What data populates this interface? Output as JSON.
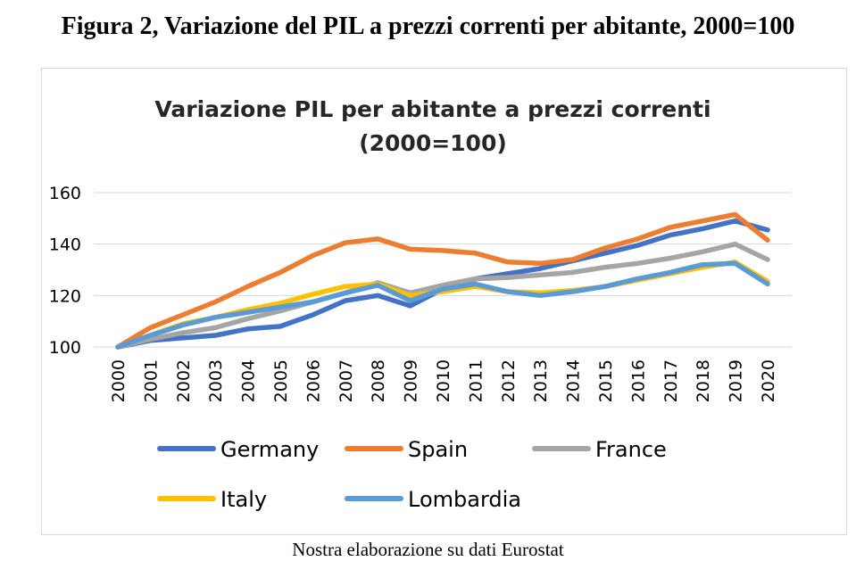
{
  "figure_title": "Figura 2, Variazione del PIL a prezzi correnti per abitante, 2000=100",
  "source_note": "Nostra elaborazione su dati Eurostat",
  "chart_data": {
    "type": "line",
    "title_lines": [
      "Variazione PIL per abitante a prezzi correnti",
      "(2000=100)"
    ],
    "x": [
      "2000",
      "2001",
      "2002",
      "2003",
      "2004",
      "2005",
      "2006",
      "2007",
      "2008",
      "2009",
      "2010",
      "2011",
      "2012",
      "2013",
      "2014",
      "2015",
      "2016",
      "2017",
      "2018",
      "2019",
      "2020"
    ],
    "ylim": [
      100,
      160
    ],
    "yticks": [
      100,
      120,
      140,
      160
    ],
    "grid": true,
    "legend_position": "bottom",
    "series": [
      {
        "name": "Germany",
        "color": "#4472c4",
        "values": [
          100,
          102.5,
          103.5,
          104.5,
          107.0,
          108.0,
          112.5,
          118.0,
          120.0,
          116.0,
          122.5,
          126.5,
          128.5,
          130.5,
          133.5,
          136.5,
          139.5,
          143.5,
          146.0,
          149.0,
          145.5
        ]
      },
      {
        "name": "Spain",
        "color": "#ed7d31",
        "values": [
          100,
          107.5,
          112.5,
          117.5,
          123.5,
          129.0,
          135.5,
          140.5,
          142.0,
          138.0,
          137.5,
          136.5,
          133.0,
          132.5,
          134.0,
          138.5,
          142.0,
          146.5,
          149.0,
          151.5,
          141.5
        ]
      },
      {
        "name": "France",
        "color": "#a5a5a5",
        "values": [
          100,
          103.0,
          105.5,
          107.5,
          111.0,
          114.0,
          117.5,
          121.0,
          125.0,
          121.0,
          124.0,
          126.5,
          127.0,
          128.0,
          129.0,
          131.0,
          132.5,
          134.5,
          137.0,
          140.0,
          134.0
        ]
      },
      {
        "name": "Italy",
        "color": "#ffc000",
        "values": [
          100,
          104.5,
          109.0,
          111.5,
          114.5,
          117.0,
          120.5,
          123.5,
          124.5,
          120.0,
          121.5,
          123.5,
          121.5,
          121.0,
          122.0,
          123.5,
          126.0,
          128.5,
          131.0,
          133.0,
          125.5
        ]
      },
      {
        "name": "Lombardia",
        "color": "#5b9bd5",
        "values": [
          100,
          104.5,
          108.5,
          111.5,
          113.5,
          115.5,
          117.5,
          121.0,
          124.0,
          118.0,
          122.5,
          124.5,
          121.5,
          120.0,
          121.5,
          123.5,
          126.5,
          129.0,
          132.0,
          132.5,
          124.5
        ]
      }
    ]
  }
}
